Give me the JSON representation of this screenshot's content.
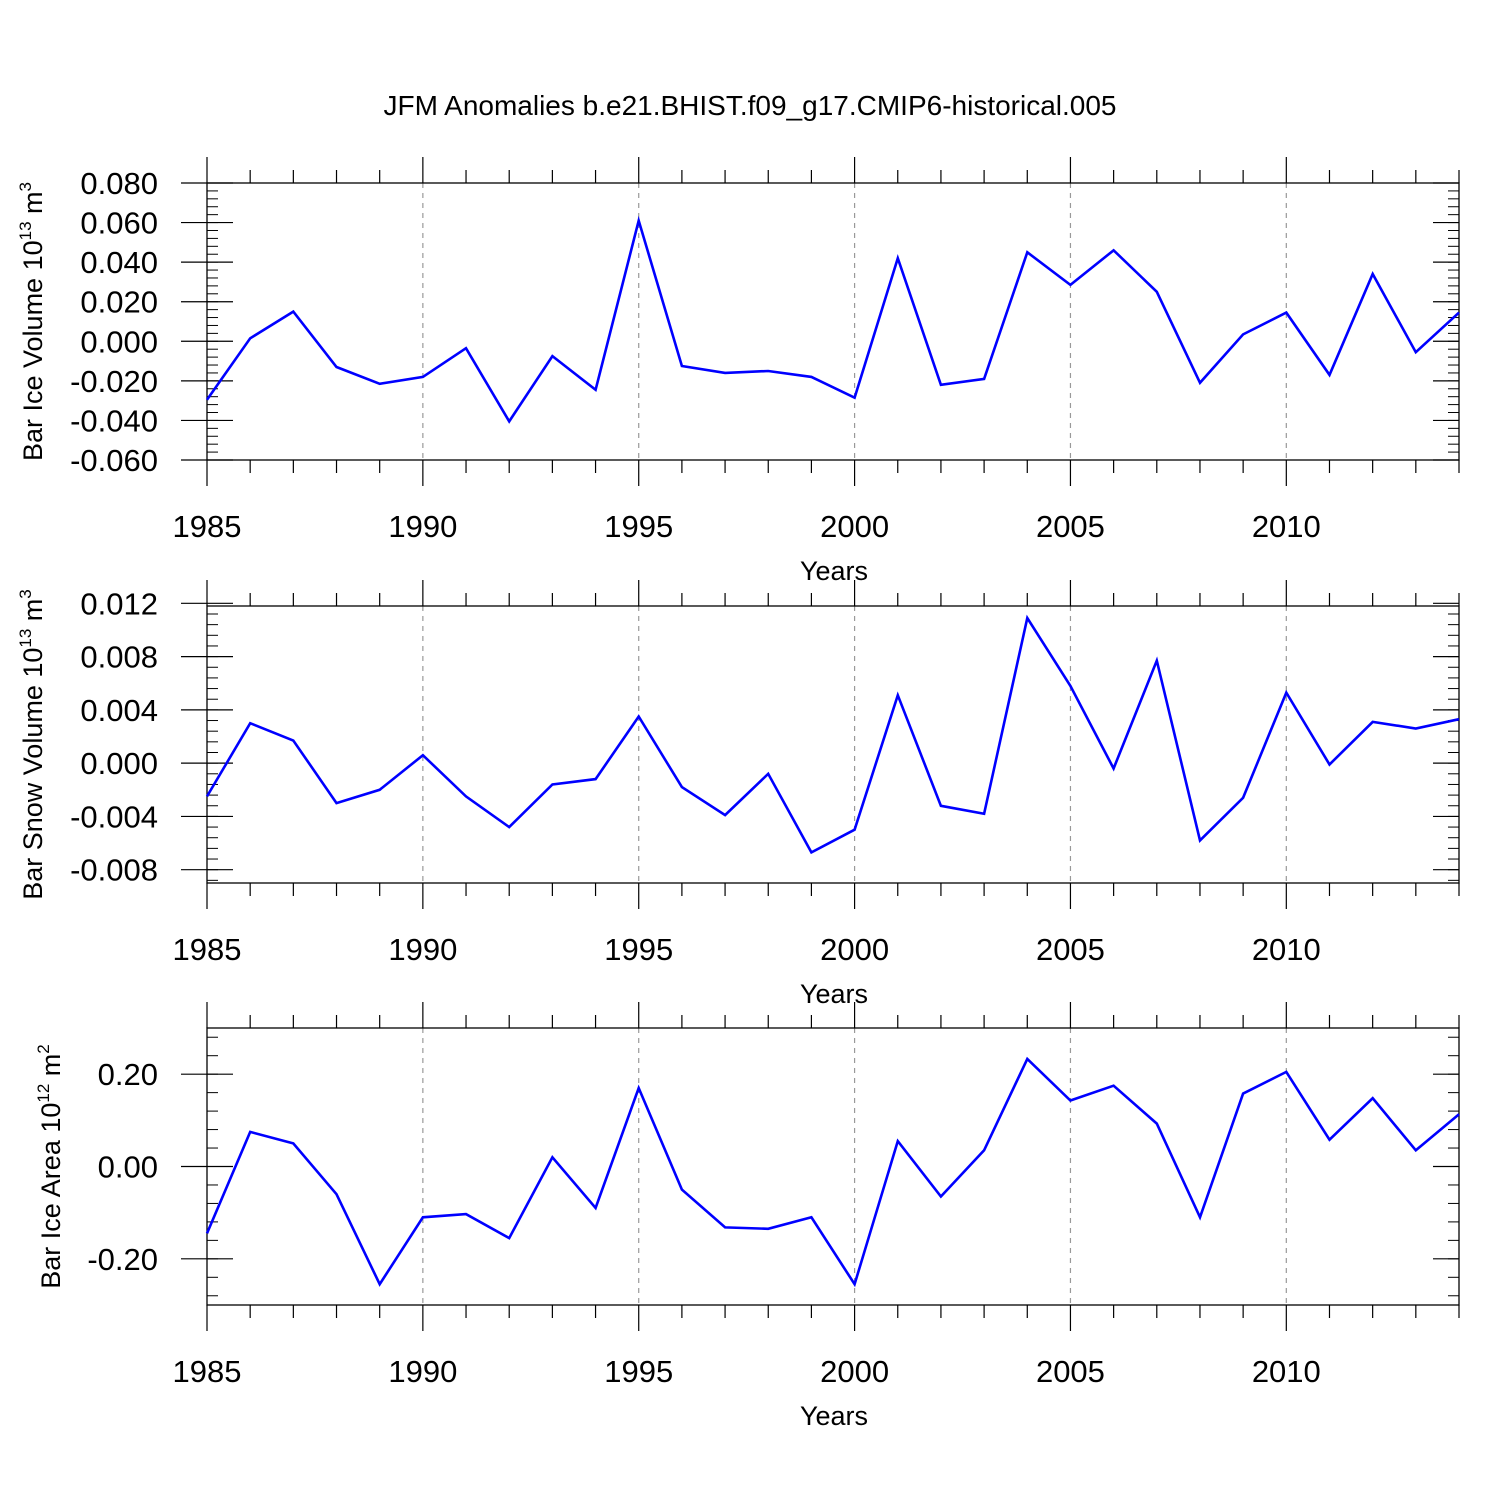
{
  "title": "JFM Anomalies b.e21.BHIST.f09_g17.CMIP6-historical.005",
  "chart_data": [
    {
      "type": "line",
      "ylabel": "Bar Ice Volume 10",
      "ylabel_sup": "13",
      "ylabel_unit": " m",
      "ylabel_unit_sup": "3",
      "xlabel": "Years",
      "xlim": [
        1985,
        2014
      ],
      "ylim": [
        -0.06,
        0.08
      ],
      "x_ticks": [
        1985,
        1990,
        1995,
        2000,
        2005,
        2010
      ],
      "y_ticks": [
        -0.06,
        -0.04,
        -0.02,
        0.0,
        0.02,
        0.04,
        0.06,
        0.08
      ],
      "y_tick_labels": [
        "-0.060",
        "-0.040",
        "-0.020",
        "0.000",
        "0.020",
        "0.040",
        "0.060",
        "0.080"
      ],
      "x": [
        1985,
        1986,
        1987,
        1988,
        1989,
        1990,
        1991,
        1992,
        1993,
        1994,
        1995,
        1996,
        1997,
        1998,
        1999,
        2000,
        2001,
        2002,
        2003,
        2004,
        2005,
        2006,
        2007,
        2008,
        2009,
        2010,
        2011,
        2012,
        2013,
        2014
      ],
      "series": [
        {
          "color": "#0000ff",
          "values": [
            -0.0295,
            0.0015,
            0.015,
            -0.013,
            -0.0215,
            -0.018,
            -0.0035,
            -0.0405,
            -0.0075,
            -0.0245,
            0.061,
            -0.0125,
            -0.016,
            -0.015,
            -0.018,
            -0.0285,
            0.042,
            -0.022,
            -0.019,
            0.045,
            0.0285,
            0.046,
            0.025,
            -0.021,
            0.0035,
            0.0145,
            -0.017,
            0.034,
            -0.0055,
            0.0145
          ]
        }
      ]
    },
    {
      "type": "line",
      "ylabel": "Bar Snow Volume 10",
      "ylabel_sup": "13",
      "ylabel_unit": " m",
      "ylabel_unit_sup": "3",
      "xlabel": "Years",
      "xlim": [
        1985,
        2014
      ],
      "ylim": [
        -0.009,
        0.0118
      ],
      "x_ticks": [
        1985,
        1990,
        1995,
        2000,
        2005,
        2010
      ],
      "y_ticks": [
        -0.008,
        -0.004,
        0.0,
        0.004,
        0.008,
        0.012
      ],
      "y_tick_labels": [
        "-0.008",
        "-0.004",
        "0.000",
        "0.004",
        "0.008",
        "0.012"
      ],
      "x": [
        1985,
        1986,
        1987,
        1988,
        1989,
        1990,
        1991,
        1992,
        1993,
        1994,
        1995,
        1996,
        1997,
        1998,
        1999,
        2000,
        2001,
        2002,
        2003,
        2004,
        2005,
        2006,
        2007,
        2008,
        2009,
        2010,
        2011,
        2012,
        2013,
        2014
      ],
      "series": [
        {
          "color": "#0000ff",
          "values": [
            -0.0025,
            0.003,
            0.0017,
            -0.003,
            -0.002,
            0.0006,
            -0.0025,
            -0.0048,
            -0.0016,
            -0.0012,
            0.0035,
            -0.0018,
            -0.0039,
            -0.0008,
            -0.0067,
            -0.005,
            0.0051,
            -0.0032,
            -0.0038,
            0.0109,
            0.0058,
            -0.0004,
            0.0077,
            -0.0058,
            -0.0026,
            0.0053,
            -0.0001,
            0.0031,
            0.0026,
            0.0033
          ]
        }
      ]
    },
    {
      "type": "line",
      "ylabel": "Bar Ice Area 10",
      "ylabel_sup": "12",
      "ylabel_unit": " m",
      "ylabel_unit_sup": "2",
      "xlabel": "Years",
      "xlim": [
        1985,
        2014
      ],
      "ylim": [
        -0.3,
        0.3
      ],
      "x_ticks": [
        1985,
        1990,
        1995,
        2000,
        2005,
        2010
      ],
      "y_ticks": [
        -0.2,
        0.0,
        0.2
      ],
      "y_tick_labels": [
        "-0.20",
        "0.00",
        "0.20"
      ],
      "x": [
        1985,
        1986,
        1987,
        1988,
        1989,
        1990,
        1991,
        1992,
        1993,
        1994,
        1995,
        1996,
        1997,
        1998,
        1999,
        2000,
        2001,
        2002,
        2003,
        2004,
        2005,
        2006,
        2007,
        2008,
        2009,
        2010,
        2011,
        2012,
        2013,
        2014
      ],
      "series": [
        {
          "color": "#0000ff",
          "values": [
            -0.145,
            0.075,
            0.05,
            -0.06,
            -0.255,
            -0.11,
            -0.103,
            -0.155,
            0.02,
            -0.09,
            0.17,
            -0.05,
            -0.132,
            -0.135,
            -0.11,
            -0.255,
            0.055,
            -0.065,
            0.035,
            0.233,
            0.143,
            0.175,
            0.093,
            -0.11,
            0.158,
            0.205,
            0.058,
            0.148,
            0.035,
            0.113
          ]
        }
      ]
    }
  ]
}
